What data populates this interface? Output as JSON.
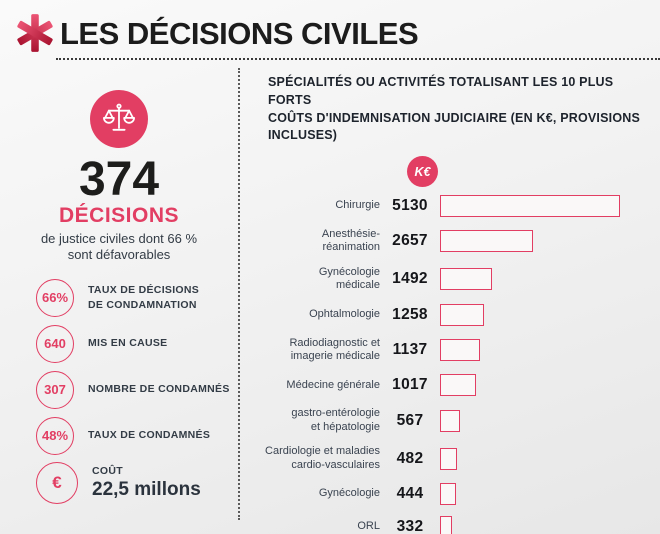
{
  "header": {
    "title": "LES DÉCISIONS CIVILES",
    "icon": "asterisk-icon"
  },
  "left_panel": {
    "badge_icon": "scales-of-justice-icon",
    "big_number": "374",
    "big_label": "DÉCISIONS",
    "subtitle": "de justice civiles dont 66 %\nsont défavorables",
    "stats": [
      {
        "value": "66%",
        "label": "TAUX DE DÉCISIONS\nDE CONDAMNATION"
      },
      {
        "value": "640",
        "label": "MIS EN CAUSE"
      },
      {
        "value": "307",
        "label": "NOMBRE DE CONDAMNÉS"
      },
      {
        "value": "48%",
        "label": "TAUX DE CONDAMNÉS"
      },
      {
        "value": "€",
        "label": "COÛT",
        "sub_value": "22,5 millons",
        "icon": "euro-icon"
      }
    ]
  },
  "right_panel": {
    "title": "SPÉCIALITÉS OU ACTIVITÉS TOTALISANT LES 10 PLUS FORTS\nCOÛTS D'INDEMNISATION JUDICIAIRE (EN K€, PROVISIONS\nINCLUSES)",
    "unit_badge": "K€"
  },
  "chart_data": {
    "type": "bar",
    "orientation": "horizontal",
    "title": "Spécialités ou activités totalisant les 10 plus forts coûts d'indemnisation judiciaire (en K€, provisions incluses)",
    "unit": "K€",
    "bar_style": "outlined",
    "legend_position": "none",
    "grid": false,
    "xlim": [
      0,
      5130
    ],
    "categories": [
      "Chirurgie",
      "Anesthésie-\nréanimation",
      "Gynécologie\nmédicale",
      "Ophtalmologie",
      "Radiodiagnostic et\nimagerie médicale",
      "Médecine générale",
      "gastro-entérologie\net hépatologie",
      "Cardiologie et maladies\ncardio-vasculaires",
      "Gynécologie",
      "ORL"
    ],
    "values": [
      5130,
      2657,
      1492,
      1258,
      1137,
      1017,
      567,
      482,
      444,
      332
    ],
    "max_value": 5130
  },
  "colors": {
    "accent": "#e23e63",
    "header_icon_gradient_top": "#ec5575",
    "header_icon_gradient_bottom": "#a91330",
    "title_text": "#1c1c1c",
    "label_text": "#333c46",
    "background_top": "#fafafa",
    "background_bottom": "#e7e7e7"
  }
}
